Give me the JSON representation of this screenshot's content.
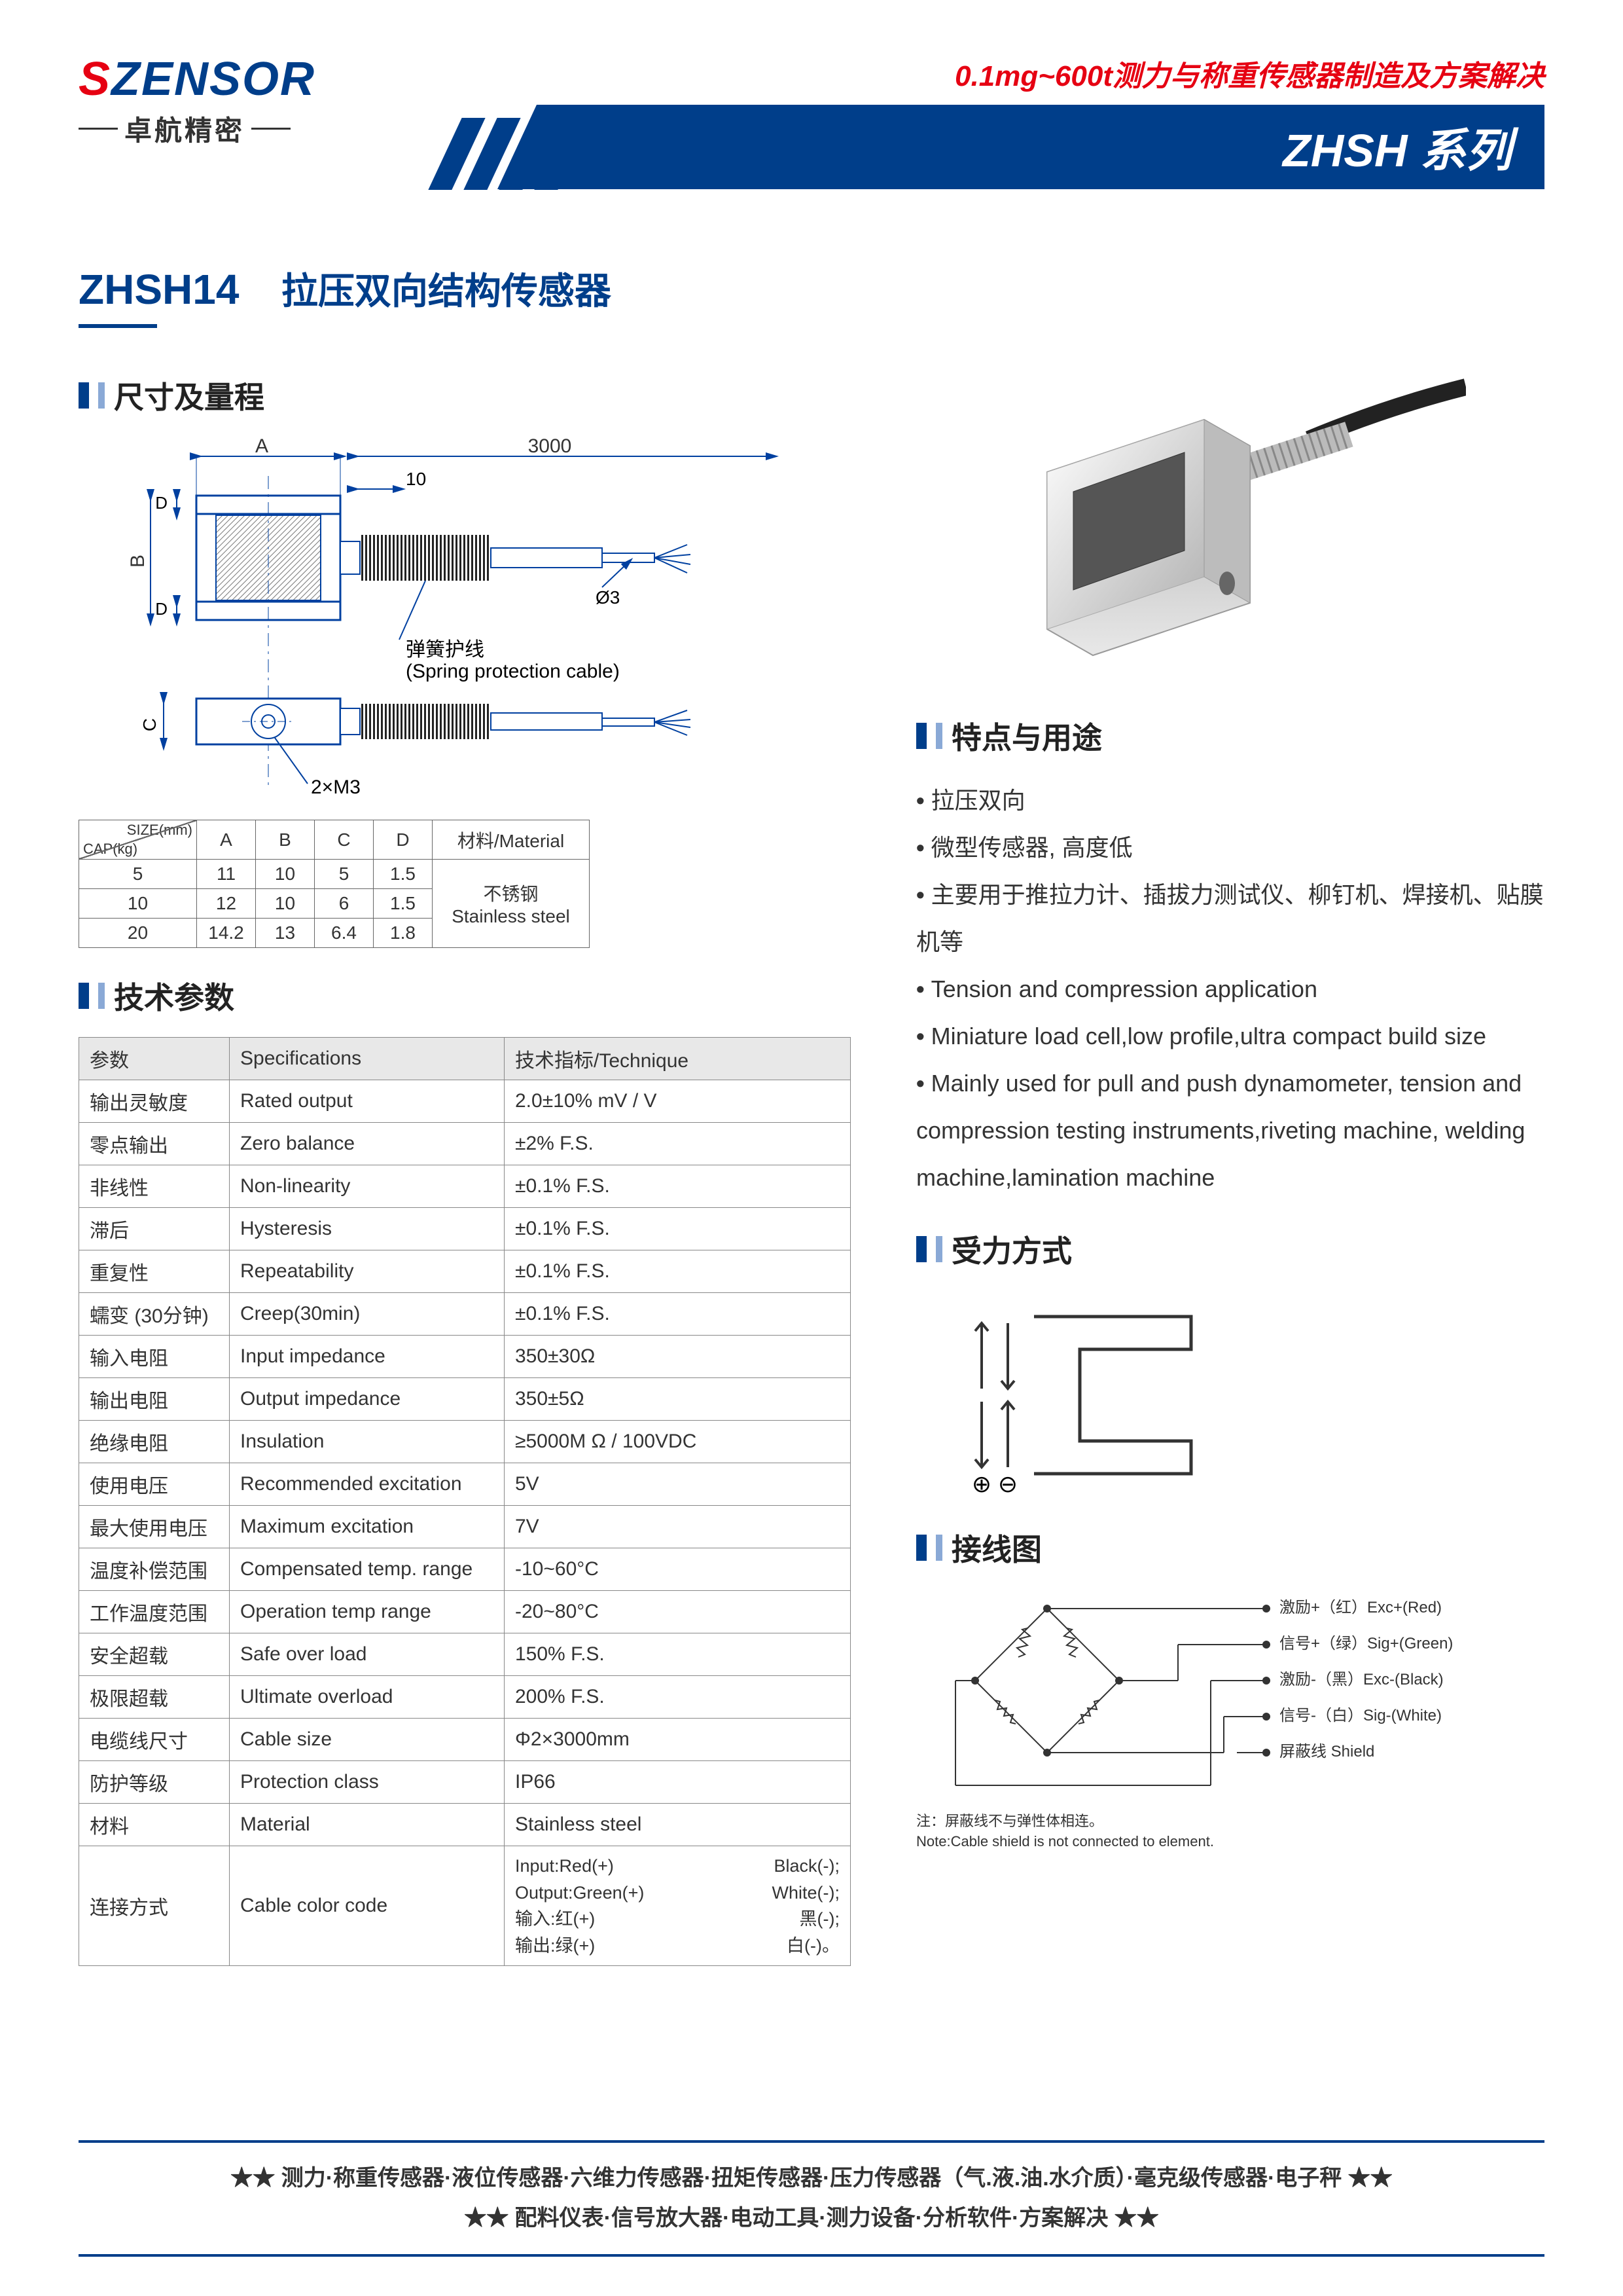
{
  "header": {
    "logo_s": "S",
    "logo_rest": "ZENSOR",
    "logo_sub": "卓航精密",
    "tagline": "0.1mg~600t测力与称重传感器制造及方案解决",
    "series": "ZHSH 系列"
  },
  "title": {
    "model": "ZHSH14",
    "desc": "拉压双向结构传感器"
  },
  "sections": {
    "dims": "尺寸及量程",
    "specs": "技术参数",
    "features": "特点与用途",
    "force": "受力方式",
    "wiring": "接线图"
  },
  "diagram": {
    "dim_A": "A",
    "dim_B": "B",
    "dim_C": "C",
    "dim_D": "D",
    "len_3000": "3000",
    "len_10": "10",
    "phi3": "Ø3",
    "spring_cn": "弹簧护线",
    "spring_en": "(Spring protection cable)",
    "thread": "2×M3"
  },
  "size_table": {
    "hd_size": "SIZE(mm)",
    "hd_cap": "CAP(kg)",
    "cols": [
      "A",
      "B",
      "C",
      "D",
      "材料/Material"
    ],
    "rows": [
      {
        "cap": "5",
        "A": "11",
        "B": "10",
        "C": "5",
        "D": "1.5"
      },
      {
        "cap": "10",
        "A": "12",
        "B": "10",
        "C": "6",
        "D": "1.5"
      },
      {
        "cap": "20",
        "A": "14.2",
        "B": "13",
        "C": "6.4",
        "D": "1.8"
      }
    ],
    "material_cn": "不锈钢",
    "material_en": "Stainless steel"
  },
  "spec_table": {
    "head": [
      "参数",
      "Specifications",
      "技术指标/Technique"
    ],
    "rows": [
      [
        "输出灵敏度",
        "Rated output",
        "2.0±10%  mV / V"
      ],
      [
        "零点输出",
        "Zero balance",
        "±2% F.S."
      ],
      [
        "非线性",
        "Non-linearity",
        "±0.1% F.S."
      ],
      [
        "滞后",
        "Hysteresis",
        "±0.1% F.S."
      ],
      [
        "重复性",
        "Repeatability",
        "±0.1% F.S."
      ],
      [
        "蠕变 (30分钟)",
        "Creep(30min)",
        "±0.1% F.S."
      ],
      [
        "输入电阻",
        "Input impedance",
        "350±30Ω"
      ],
      [
        "输出电阻",
        "Output impedance",
        "350±5Ω"
      ],
      [
        "绝缘电阻",
        "Insulation",
        "≥5000M Ω / 100VDC"
      ],
      [
        "使用电压",
        "Recommended excitation",
        "5V"
      ],
      [
        "最大使用电压",
        "Maximum excitation",
        "7V"
      ],
      [
        "温度补偿范围",
        "Compensated temp. range",
        "-10~60°C"
      ],
      [
        "工作温度范围",
        "Operation temp range",
        "-20~80°C"
      ],
      [
        "安全超载",
        "Safe over load",
        "150% F.S."
      ],
      [
        "极限超载",
        "Ultimate overload",
        "200% F.S."
      ],
      [
        "电缆线尺寸",
        "Cable size",
        "Φ2×3000mm"
      ],
      [
        "防护等级",
        "Protection class",
        "IP66"
      ],
      [
        "材料",
        "Material",
        "Stainless steel"
      ]
    ],
    "last": {
      "c1": "连接方式",
      "c2": "Cable color code",
      "c3a": "Input:Red(+)",
      "c3b": "Black(-);",
      "c3c": "Output:Green(+)",
      "c3d": "White(-);",
      "c3e": "输入:红(+)",
      "c3f": "黑(-);",
      "c3g": "输出:绿(+)",
      "c3h": "白(-)。"
    }
  },
  "features": [
    "拉压双向",
    "微型传感器, 高度低",
    "主要用于推拉力计、插拔力测试仪、柳钉机、焊接机、贴膜机等",
    "Tension and compression application",
    "Miniature load cell,low profile,ultra compact build size",
    "Mainly used for pull and push dynamometer, tension and compression testing  instruments,riveting machine, welding machine,lamination machine"
  ],
  "force": {
    "plus": "⊕",
    "minus": "⊖"
  },
  "wiring": {
    "labels": [
      "激励+（红）Exc+(Red)",
      "信号+（绿）Sig+(Green)",
      "激励-（黑）Exc-(Black)",
      "信号-（白）Sig-(White)",
      "屏蔽线  Shield"
    ],
    "note_cn": "注：屏蔽线不与弹性体相连。",
    "note_en": "Note:Cable shield is not connected to element."
  },
  "footer": {
    "l1": "★★  测力·称重传感器·液位传感器·六维力传感器·扭矩传感器·压力传感器（气.液.油.水介质）·毫克级传感器·电子秤  ★★",
    "l2": "★★  配料仪表·信号放大器·电动工具·测力设备·分析软件·方案解决  ★★"
  },
  "colors": {
    "brand_blue": "#003e8a",
    "brand_red": "#e60012"
  }
}
